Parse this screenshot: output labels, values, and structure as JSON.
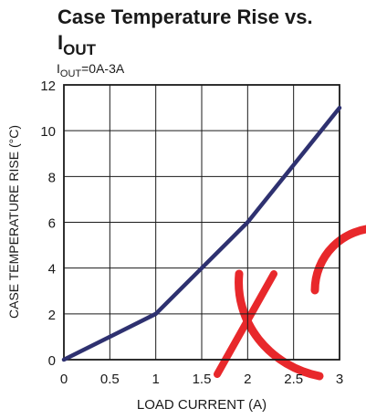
{
  "chart_data": {
    "type": "line",
    "title_line1": "Case Temperature Rise vs.",
    "title_var": "I",
    "title_var_sub": "OUT",
    "subtitle_var": "I",
    "subtitle_var_sub": "OUT",
    "subtitle_rest": "=0A-3A",
    "xlabel": "LOAD CURRENT (A)",
    "ylabel": "CASE TEMPERATURE RISE (°C)",
    "xlim": [
      0,
      3
    ],
    "ylim": [
      0,
      12
    ],
    "x_ticks": [
      "0",
      "0.5",
      "1",
      "1.5",
      "2",
      "2.5",
      "3"
    ],
    "y_ticks": [
      "0",
      "2",
      "4",
      "6",
      "8",
      "10",
      "12"
    ],
    "grid": true,
    "line_color": "#2e3170",
    "watermark_color": "#e8282b",
    "series": [
      {
        "x": [
          0,
          1,
          1.5,
          2,
          3
        ],
        "y": [
          0,
          2,
          4,
          6,
          11
        ]
      }
    ]
  }
}
